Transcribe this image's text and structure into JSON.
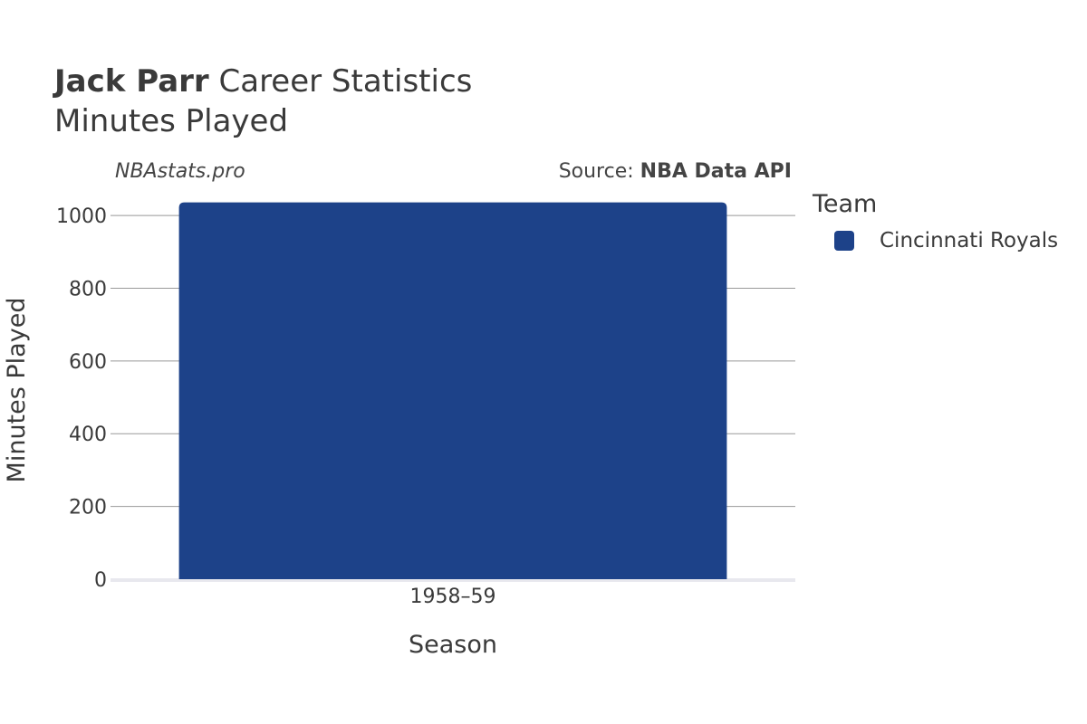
{
  "header": {
    "player_name": "Jack Parr",
    "title_rest": " Career Statistics",
    "subtitle": "Minutes Played"
  },
  "watermark": "NBAstats.pro",
  "source": {
    "prefix": "Source: ",
    "name": "NBA Data API"
  },
  "legend": {
    "title": "Team",
    "items": [
      {
        "label": "Cincinnati Royals",
        "color": "#1d4289"
      }
    ]
  },
  "chart_data": {
    "type": "bar",
    "categories": [
      "1958–59"
    ],
    "series": [
      {
        "name": "Cincinnati Royals",
        "values": [
          1036
        ],
        "color": "#1d4289"
      }
    ],
    "xlabel": "Season",
    "ylabel": "Minutes Played",
    "ylim": [
      0,
      1040
    ],
    "yticks": [
      0,
      200,
      400,
      600,
      800,
      1000
    ],
    "grid": true
  }
}
